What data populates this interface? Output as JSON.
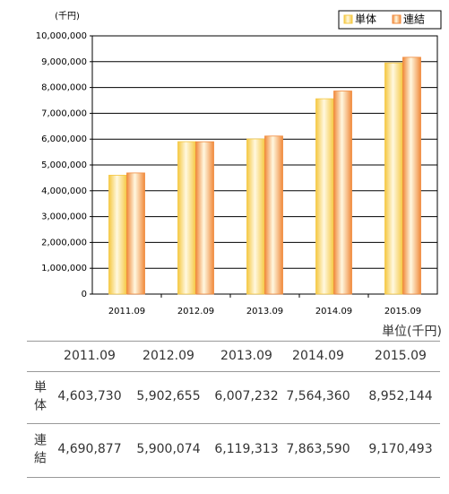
{
  "chart_data": {
    "type": "bar",
    "unit_label": "(千円)",
    "categories": [
      "2011.09",
      "2012.09",
      "2013.09",
      "2014.09",
      "2015.09"
    ],
    "series": [
      {
        "name": "単体",
        "color": "#f5c842",
        "values": [
          4603730,
          5902655,
          6007232,
          7564360,
          8952144
        ]
      },
      {
        "name": "連結",
        "color": "#f08a3c",
        "values": [
          4690877,
          5900074,
          6119313,
          7863590,
          9170493
        ]
      }
    ],
    "ylim": [
      0,
      10000000
    ],
    "yticks": [
      0,
      {
        "value": 1000000,
        "label": "1,000,000"
      },
      {
        "value": 2000000,
        "label": "2,000,000"
      },
      {
        "value": 3000000,
        "label": "3,000,000"
      },
      {
        "value": 4000000,
        "label": "4,000,000"
      },
      {
        "value": 5000000,
        "label": "5,000,000"
      },
      {
        "value": 6000000,
        "label": "6,000,000"
      },
      {
        "value": 7000000,
        "label": "7,000,000"
      },
      {
        "value": 8000000,
        "label": "8,000,000"
      },
      {
        "value": 9000000,
        "label": "9,000,000"
      },
      {
        "value": 10000000,
        "label": "10,000,000"
      }
    ],
    "grid": true,
    "legend": "top-right"
  },
  "table": {
    "unit": "単位(千円)",
    "columns": [
      "2011.09",
      "2012.09",
      "2013.09",
      "2014.09",
      "2015.09"
    ],
    "rows": [
      {
        "label": "単体",
        "cells": [
          "4,603,730",
          "5,902,655",
          "6,007,232",
          "7,564,360",
          "8,952,144"
        ]
      },
      {
        "label": "連結",
        "cells": [
          "4,690,877",
          "5,900,074",
          "6,119,313",
          "7,863,590",
          "9,170,493"
        ]
      }
    ]
  }
}
